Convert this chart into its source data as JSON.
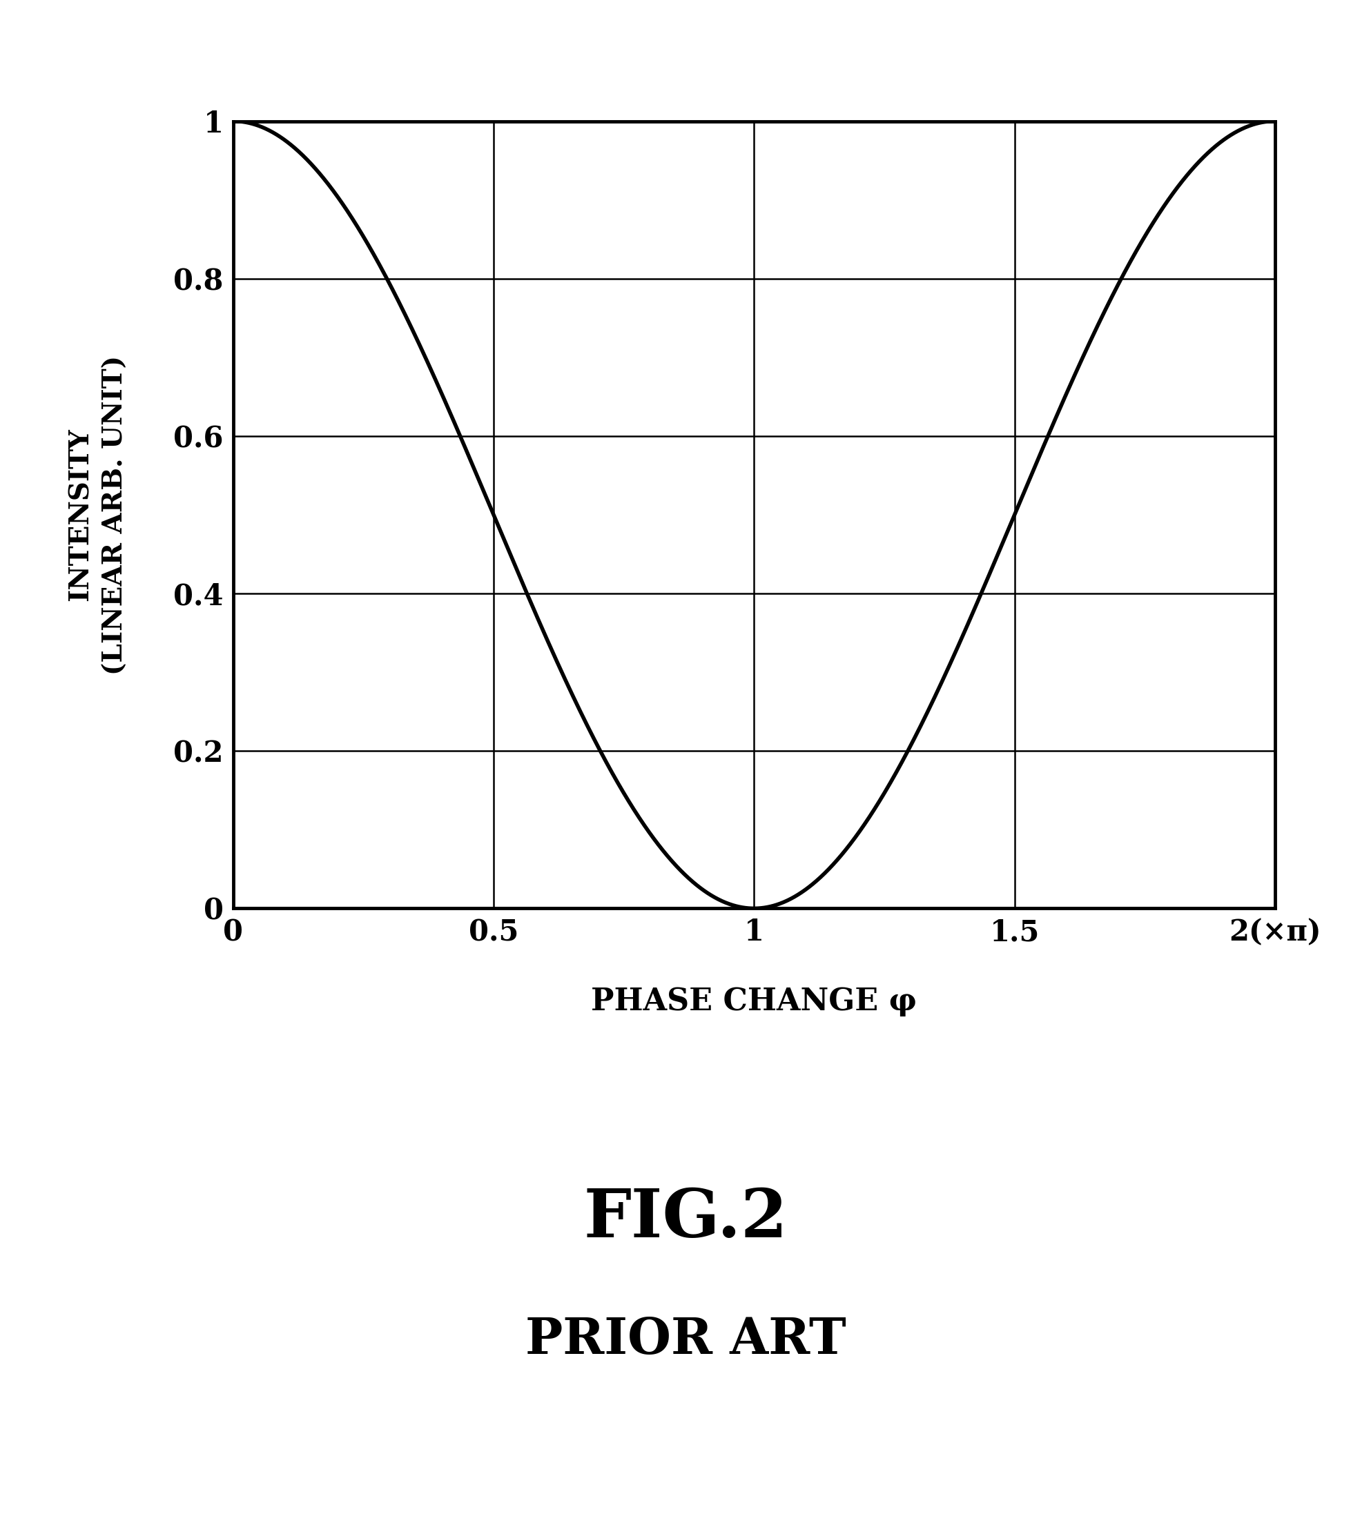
{
  "ylabel_line1": "INTENSITY",
  "ylabel_line2": "(LINEAR ARB. UNIT)",
  "xlabel": "PHASE CHANGE φ",
  "xlim": [
    0,
    2
  ],
  "ylim": [
    0,
    1
  ],
  "xticks": [
    0,
    0.5,
    1,
    1.5,
    2
  ],
  "xticklabels": [
    "0",
    "0.5",
    "1",
    "1.5",
    "2(×π)"
  ],
  "yticks": [
    0,
    0.2,
    0.4,
    0.6,
    0.8,
    1
  ],
  "yticklabels": [
    "0",
    "0.2",
    "0.4",
    "0.6",
    "0.8",
    "1"
  ],
  "curve_color": "#000000",
  "curve_linewidth": 4.0,
  "grid_color": "#000000",
  "grid_linewidth": 1.8,
  "axis_linewidth": 3.5,
  "background_color": "#ffffff",
  "fig_caption_line1": "FIG.2",
  "fig_caption_line2": "PRIOR ART",
  "caption1_fontsize": 70,
  "caption2_fontsize": 52,
  "tick_fontsize": 30,
  "ylabel_fontsize": 28,
  "xlabel_fontsize": 32
}
